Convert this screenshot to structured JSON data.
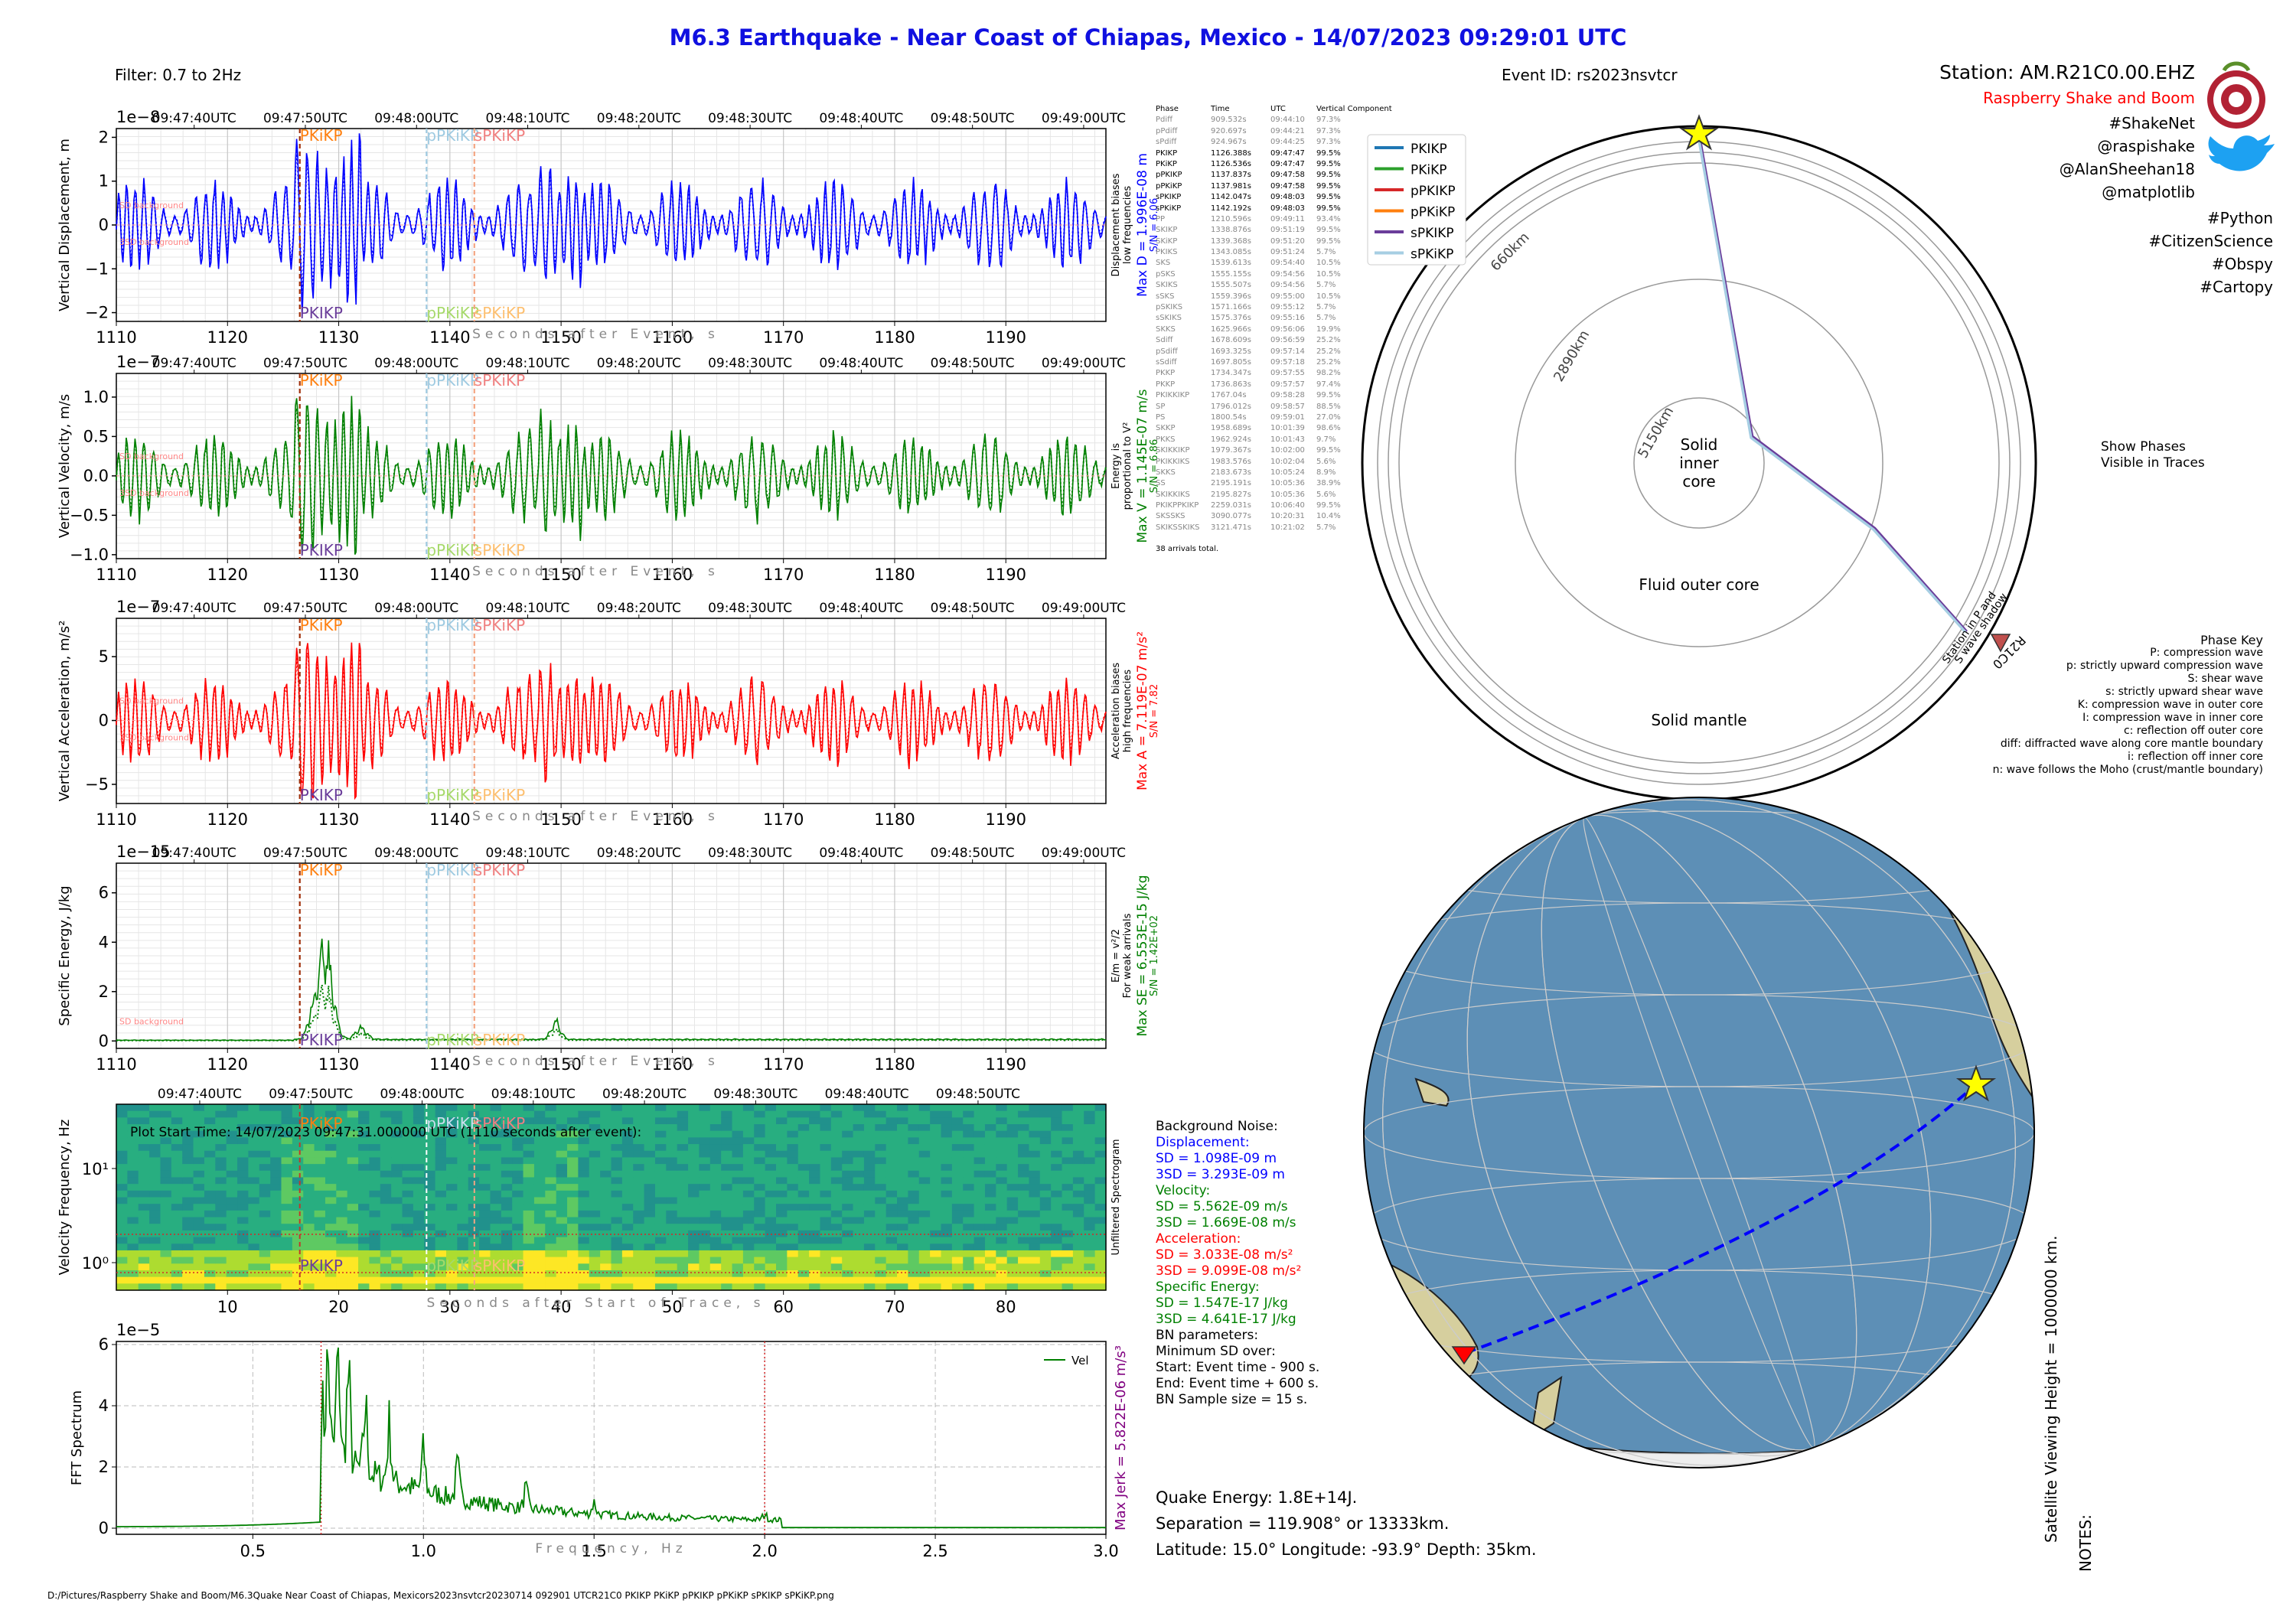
{
  "title": "M6.3 Earthquake - Near Coast of Chiapas, Mexico -  14/07/2023 09:29:01 UTC",
  "filter": "Filter: 0.7 to 2Hz",
  "event_id": "Event ID: rs2023nsvtcr",
  "station": {
    "name": "Station: AM.R21C0.00.EHZ",
    "org": "Raspberry Shake and Boom",
    "tags": [
      "#ShakeNet",
      "@raspishake",
      "@AlanSheehan18",
      "@matplotlib",
      "#Python",
      "#CitizenScience",
      "#Obspy",
      "#Cartopy"
    ]
  },
  "time_ticks": [
    "09:47:40UTC",
    "09:47:50UTC",
    "09:48:00UTC",
    "09:48:10UTC",
    "09:48:20UTC",
    "09:48:30UTC",
    "09:48:40UTC",
    "09:48:50UTC",
    "09:49:00UTC"
  ],
  "spec_time_ticks": [
    "09:47:40UTC",
    "09:47:50UTC",
    "09:48:00UTC",
    "09:48:10UTC",
    "09:48:20UTC",
    "09:48:30UTC",
    "09:48:40UTC",
    "09:48:50UTC"
  ],
  "x_ticks": [
    "1110",
    "1120",
    "1130",
    "1140",
    "1150",
    "1160",
    "1170",
    "1180",
    "1190"
  ],
  "x_label": "Seconds after Event, s",
  "panels": [
    {
      "key": "disp",
      "color": "#0000ff",
      "exponent": "1e−8",
      "ylabel": "Vertical Displacement, m",
      "yticks": [
        "2",
        "1",
        "0",
        "−1",
        "−2"
      ],
      "ylim": [
        -2.2,
        2.2
      ],
      "side_note": "Displacement biases low frequencies",
      "max_label": "Max D = 1.996E-08 m",
      "sn_label": "S/N = 6.06",
      "sd_label": "SD background",
      "sd3_label": "3SD background"
    },
    {
      "key": "vel",
      "color": "#008000",
      "exponent": "1e−7",
      "ylabel": "Vertical Velocity, m/s",
      "yticks": [
        "1.0",
        "0.5",
        "0.0",
        "−0.5",
        "−1.0"
      ],
      "ylim": [
        -1.05,
        1.3
      ],
      "side_note": "Energy is proportional to V²",
      "max_label": "Max V = 1.145E-07 m/s",
      "sn_label": "S/N = 6.86",
      "sd_label": "SD background",
      "sd3_label": "3SD background"
    },
    {
      "key": "acc",
      "color": "#ff0000",
      "exponent": "1e−7",
      "ylabel": "Vertical Acceleration, m/s²",
      "yticks": [
        "5",
        "0",
        "−5"
      ],
      "ylim": [
        -6.5,
        8
      ],
      "side_note": "Acceleration biases high frequencies",
      "max_label": "Max A = 7.119E-07 m/s²",
      "sn_label": "S/N = 7.82",
      "sd_label": "SD background",
      "sd3_label": "3SD background"
    },
    {
      "key": "energy",
      "color": "#008000",
      "exponent": "1e−15",
      "ylabel": "Specific Energy, J/kg",
      "yticks": [
        "6",
        "4",
        "2",
        "0"
      ],
      "ylim": [
        -0.3,
        7.2
      ],
      "side_note": "E/m = v²/2 For weak arrivals",
      "max_label": "Max SE = 6.553E-15 J/kg",
      "sn_label": "S/N = 1.42E+02",
      "sd_label": "SD background",
      "sd3_label": ""
    }
  ],
  "phase_markers": [
    {
      "top": "PKiKP",
      "bottom": "PKIKP",
      "t": 1126.5,
      "color_top": "#ff7f0e",
      "color_bottom": "#6a3d9a"
    },
    {
      "top": "pPKiKP",
      "bottom": "pPKiKP",
      "t": 1137.9,
      "color_top": "#9ecae1",
      "color_bottom": "#a6d96a"
    },
    {
      "top": "sPKiKP",
      "bottom": "sPKiKP",
      "t": 1142.2,
      "color_top": "#f08080",
      "color_bottom": "#fdbf6f"
    }
  ],
  "phase_table": {
    "headers": [
      "Phase",
      "Time",
      "UTC",
      "Vertical Component"
    ],
    "rows": [
      [
        "Pdiff",
        "909.532s",
        "09:44:10",
        "97.3%",
        0
      ],
      [
        "pPdiff",
        "920.697s",
        "09:44:21",
        "97.3%",
        0
      ],
      [
        "sPdiff",
        "924.967s",
        "09:44:25",
        "97.3%",
        0
      ],
      [
        "PKIKP",
        "1126.388s",
        "09:47:47",
        "99.5%",
        1
      ],
      [
        "PKiKP",
        "1126.536s",
        "09:47:47",
        "99.5%",
        1
      ],
      [
        "pPKIKP",
        "1137.837s",
        "09:47:58",
        "99.5%",
        1
      ],
      [
        "pPKiKP",
        "1137.981s",
        "09:47:58",
        "99.5%",
        1
      ],
      [
        "sPKIKP",
        "1142.047s",
        "09:48:03",
        "99.5%",
        1
      ],
      [
        "sPKiKP",
        "1142.192s",
        "09:48:03",
        "99.5%",
        1
      ],
      [
        "PP",
        "1210.596s",
        "09:49:11",
        "93.4%",
        0
      ],
      [
        "SKIKP",
        "1338.876s",
        "09:51:19",
        "99.5%",
        0
      ],
      [
        "SKiKP",
        "1339.368s",
        "09:51:20",
        "99.5%",
        0
      ],
      [
        "PKIKS",
        "1343.085s",
        "09:51:24",
        "5.7%",
        0
      ],
      [
        "SKS",
        "1539.613s",
        "09:54:40",
        "10.5%",
        0
      ],
      [
        "pSKS",
        "1555.155s",
        "09:54:56",
        "10.5%",
        0
      ],
      [
        "SKIKS",
        "1555.507s",
        "09:54:56",
        "5.7%",
        0
      ],
      [
        "sSKS",
        "1559.396s",
        "09:55:00",
        "10.5%",
        0
      ],
      [
        "pSKIKS",
        "1571.166s",
        "09:55:12",
        "5.7%",
        0
      ],
      [
        "sSKIKS",
        "1575.376s",
        "09:55:16",
        "5.7%",
        0
      ],
      [
        "SKKS",
        "1625.966s",
        "09:56:06",
        "19.9%",
        0
      ],
      [
        "Sdiff",
        "1678.609s",
        "09:56:59",
        "25.2%",
        0
      ],
      [
        "pSdiff",
        "1693.325s",
        "09:57:14",
        "25.2%",
        0
      ],
      [
        "sSdiff",
        "1697.805s",
        "09:57:18",
        "25.2%",
        0
      ],
      [
        "PKKP",
        "1734.347s",
        "09:57:55",
        "98.2%",
        0
      ],
      [
        "PKKP",
        "1736.863s",
        "09:57:57",
        "97.4%",
        0
      ],
      [
        "PKIKKIKP",
        "1767.04s",
        "09:58:28",
        "99.5%",
        0
      ],
      [
        "SP",
        "1796.012s",
        "09:58:57",
        "88.5%",
        0
      ],
      [
        "PS",
        "1800.54s",
        "09:59:01",
        "27.0%",
        0
      ],
      [
        "SKKP",
        "1958.689s",
        "10:01:39",
        "98.6%",
        0
      ],
      [
        "PKKS",
        "1962.924s",
        "10:01:43",
        "9.7%",
        0
      ],
      [
        "SKIKKIKP",
        "1979.367s",
        "10:02:00",
        "99.5%",
        0
      ],
      [
        "PKIKKIKS",
        "1983.576s",
        "10:02:04",
        "5.6%",
        0
      ],
      [
        "SKKS",
        "2183.673s",
        "10:05:24",
        "8.9%",
        0
      ],
      [
        "SS",
        "2195.191s",
        "10:05:36",
        "38.9%",
        0
      ],
      [
        "SKIKKIKS",
        "2195.827s",
        "10:05:36",
        "5.6%",
        0
      ],
      [
        "PKIKPPKIKP",
        "2259.031s",
        "10:06:40",
        "99.5%",
        0
      ],
      [
        "SKSSKS",
        "3090.077s",
        "10:20:31",
        "10.4%",
        0
      ],
      [
        "SKIKSSKIKS",
        "3121.471s",
        "10:21:02",
        "5.7%",
        0
      ]
    ],
    "footer": "38 arrivals total."
  },
  "spectrogram": {
    "start_label": "Plot Start Time:  14/07/2023 09:47:31.000000 UTC (1110 seconds after event):",
    "x_ticks": [
      "10",
      "20",
      "30",
      "40",
      "50",
      "60",
      "70",
      "80"
    ],
    "x_label": "Seconds after Start of Trace, s",
    "ylabel": "Velocity Frequency, Hz",
    "y_ticks": [
      "10¹",
      "10⁰"
    ],
    "side_label": "Unfiltered Spectrogram",
    "top_labels": [
      "PKiKP",
      "pPKiKP",
      "sPKiKP"
    ],
    "bottom_labels": [
      "PKIKP",
      "pPKiKP",
      "sPKiKP"
    ]
  },
  "fft": {
    "exponent": "1e−5",
    "ylabel": "FFT Spectrum",
    "y_ticks": [
      "6",
      "4",
      "2",
      "0"
    ],
    "x_ticks": [
      "0.5",
      "1.0",
      "1.5",
      "2.0",
      "2.5",
      "3.0"
    ],
    "x_label": "Frequency, Hz",
    "legend": "Vel",
    "side_label": "Max Jerk = 5.822E-06 m/s³"
  },
  "background_noise": {
    "heading": "Background Noise:",
    "disp_h": "Displacement:",
    "disp_sd": "SD = 1.098E-09 m",
    "disp_3sd": "3SD = 3.293E-09 m",
    "vel_h": "Velocity:",
    "vel_sd": "SD = 5.562E-09 m/s",
    "vel_3sd": "3SD = 1.669E-08 m/s",
    "acc_h": "Acceleration:",
    "acc_sd": "SD = 3.033E-08 m/s²",
    "acc_3sd": "3SD = 9.099E-08 m/s²",
    "en_h": "Specific Energy:",
    "en_sd": "SD = 1.547E-17 J/kg",
    "en_3sd": "3SD = 4.641E-17 J/kg",
    "params": [
      "BN parameters:",
      "Minimum SD over:",
      "Start: Event time - 900 s.",
      "End: Event time + 600 s.",
      "BN Sample size = 15 s."
    ]
  },
  "quake": {
    "energy": "Quake Energy: 1.8E+14J.",
    "separation": "Separation = 119.908° or 13333km.",
    "location": "Latitude: 15.0° Longitude: -93.9° Depth: 35km."
  },
  "earth_section": {
    "legend": [
      {
        "label": "PKIKP",
        "color": "#1f77b4"
      },
      {
        "label": "PKiKP",
        "color": "#2ca02c"
      },
      {
        "label": "pPKIKP",
        "color": "#d62728"
      },
      {
        "label": "pPKiKP",
        "color": "#ff7f0e"
      },
      {
        "label": "sPKIKP",
        "color": "#6a3d9a"
      },
      {
        "label": "sPKiKP",
        "color": "#a6cee3"
      }
    ],
    "depth_labels": [
      "660km",
      "2890km",
      "5150km"
    ],
    "inner_core": [
      "Solid",
      "inner",
      "core"
    ],
    "outer_core": "Fluid outer core",
    "mantle": "Solid mantle",
    "station_code": "R21C0",
    "shadow": [
      "Station in P and",
      "S wave shadow"
    ],
    "show_phases": [
      "Show Phases",
      "Visible in Traces"
    ]
  },
  "phase_key": {
    "title": "Phase Key",
    "lines": [
      "P:   compression wave",
      "p:   strictly upward compression wave",
      "S:   shear wave",
      "s:   strictly upward shear wave",
      "K:   compression wave in outer core",
      "I:   compression wave in inner core",
      "c:   reflection off outer core",
      "diff:   diffracted wave along core mantle boundary",
      "i:   reflection off inner core",
      "n:   wave follows the Moho (crust/mantle boundary)"
    ]
  },
  "globe_note": "Satellite Viewing Height = 1000000 km.",
  "notes": "NOTES:",
  "file_path": "D:/Pictures/Raspberry Shake and Boom/M6.3Quake Near Coast of Chiapas, Mexicors2023nsvtcr20230714 092901 UTCR21C0 PKIKP PKiKP pPKIKP pPKiKP sPKIKP sPKiKP.png",
  "colors": {
    "title": "#1010e0",
    "disp": "#0000ff",
    "vel": "#008000",
    "acc": "#ff0000",
    "energy": "#008000",
    "org": "#ff0000",
    "jerk": "#800080"
  },
  "chart_data": [
    {
      "type": "line",
      "title": "",
      "ylabel": "Vertical Displacement, m",
      "xlabel": "Seconds after Event, s",
      "xlim": [
        1110,
        1199
      ],
      "ylim": [
        -2.2,
        2.2
      ],
      "scale": "1e-8",
      "max": "1.996E-08 m"
    },
    {
      "type": "line",
      "title": "",
      "ylabel": "Vertical Velocity, m/s",
      "xlabel": "Seconds after Event, s",
      "xlim": [
        1110,
        1199
      ],
      "ylim": [
        -1.05,
        1.3
      ],
      "scale": "1e-7",
      "max": "1.145E-07 m/s"
    },
    {
      "type": "line",
      "title": "",
      "ylabel": "Vertical Acceleration, m/s²",
      "xlabel": "Seconds after Event, s",
      "xlim": [
        1110,
        1199
      ],
      "ylim": [
        -6.5,
        8
      ],
      "scale": "1e-7",
      "max": "7.119E-07 m/s²"
    },
    {
      "type": "line",
      "title": "",
      "ylabel": "Specific Energy, J/kg",
      "xlabel": "Seconds after Event, s",
      "xlim": [
        1110,
        1199
      ],
      "ylim": [
        -0.3,
        7.2
      ],
      "scale": "1e-15",
      "max": "6.553E-15 J/kg"
    },
    {
      "type": "heatmap",
      "title": "",
      "ylabel": "Velocity Frequency, Hz",
      "xlabel": "Seconds after Start of Trace, s",
      "xlim": [
        0,
        89
      ]
    },
    {
      "type": "line",
      "title": "",
      "ylabel": "FFT Spectrum",
      "xlabel": "Frequency, Hz",
      "xlim": [
        0.1,
        3.0
      ],
      "ylim": [
        -0.2,
        6.1
      ],
      "scale": "1e-5",
      "series": [
        {
          "name": "Vel"
        }
      ],
      "peaks": {
        "x": [
          0.7,
          0.72,
          0.75,
          0.78,
          0.83,
          0.9,
          1.0,
          1.1,
          1.3,
          1.5,
          2.0
        ],
        "y": [
          2.8,
          4.8,
          5.8,
          4.5,
          3.4,
          2.9,
          2.0,
          1.6,
          1.0,
          0.6,
          0.3
        ]
      }
    }
  ]
}
